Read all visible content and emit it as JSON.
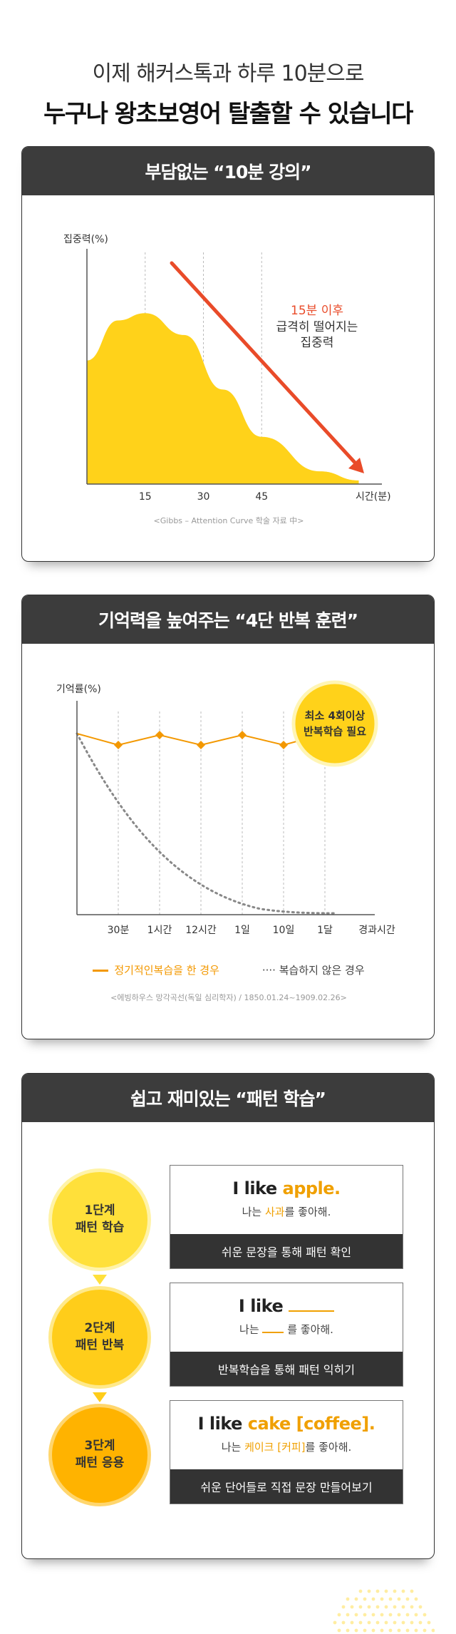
{
  "headline": {
    "line1": "이제 해커스톡과 하루 10분으로",
    "line2": "누구나 왕초보영어 탈출할 수 있습니다"
  },
  "section1": {
    "title": "부담없는 “10분 강의”",
    "chart_data": {
      "type": "area",
      "ylabel": "집중력(%)",
      "xlabel": "시간(분)",
      "x_ticks": [
        "15",
        "30",
        "45"
      ],
      "series": [
        {
          "x": [
            0,
            8,
            15,
            25,
            35,
            45,
            60,
            70
          ],
          "values": [
            68,
            90,
            94,
            82,
            52,
            26,
            7,
            2
          ]
        }
      ],
      "annotation_highlight": "15분 이후",
      "annotation_line2": "급격히 떨어지는",
      "annotation_line3": "집중력",
      "source": "<Gibbs – Attention Curve 학술 자료 中>"
    }
  },
  "section2": {
    "title": "기억력을 높여주는 “4단 반복 훈련”",
    "chart_data": {
      "type": "line",
      "ylabel": "기억률(%)",
      "xlabel": "경과시간",
      "categories": [
        "30분",
        "1시간",
        "12시간",
        "1일",
        "10일",
        "1달"
      ],
      "callout_line1": "최소 4회이상",
      "callout_line2": "반복학습 필요",
      "legend_review": "정기적인복습을 한 경우",
      "legend_no_review": "···· 복습하지 않은 경우",
      "source": "<에빙하우스 망각곡선(독일 심리학자) / 1850.01.24~1909.02.26>"
    }
  },
  "section3": {
    "title": "쉽고 재미있는 “패턴 학습”",
    "steps": [
      {
        "circle_line1": "1단계",
        "circle_line2": "패턴 학습",
        "en_prefix": "I like ",
        "en_word": "apple.",
        "ko_prefix": "나는 ",
        "ko_word": "사과",
        "ko_suffix": "를 좋아해.",
        "bar": "쉬운 문장을 통해 패턴 확인",
        "color": "#ffe03a"
      },
      {
        "circle_line1": "2단계",
        "circle_line2": "패턴 반복",
        "en_prefix": "I like ",
        "en_word": "",
        "ko_prefix": "나는 ",
        "ko_word": "",
        "ko_suffix": "를 좋아해.",
        "bar": "반복학습을 통해 패턴 익히기",
        "color": "#ffcd1a"
      },
      {
        "circle_line1": "3단계",
        "circle_line2": "패턴 응용",
        "en_prefix": "I like ",
        "en_word": "cake [coffee].",
        "ko_prefix": "나는 ",
        "ko_word": "케이크 [커피]",
        "ko_suffix": "를 좋아해.",
        "bar": "쉬운 단어들로 직접 문장 만들어보기",
        "color": "#ffb300"
      }
    ]
  }
}
